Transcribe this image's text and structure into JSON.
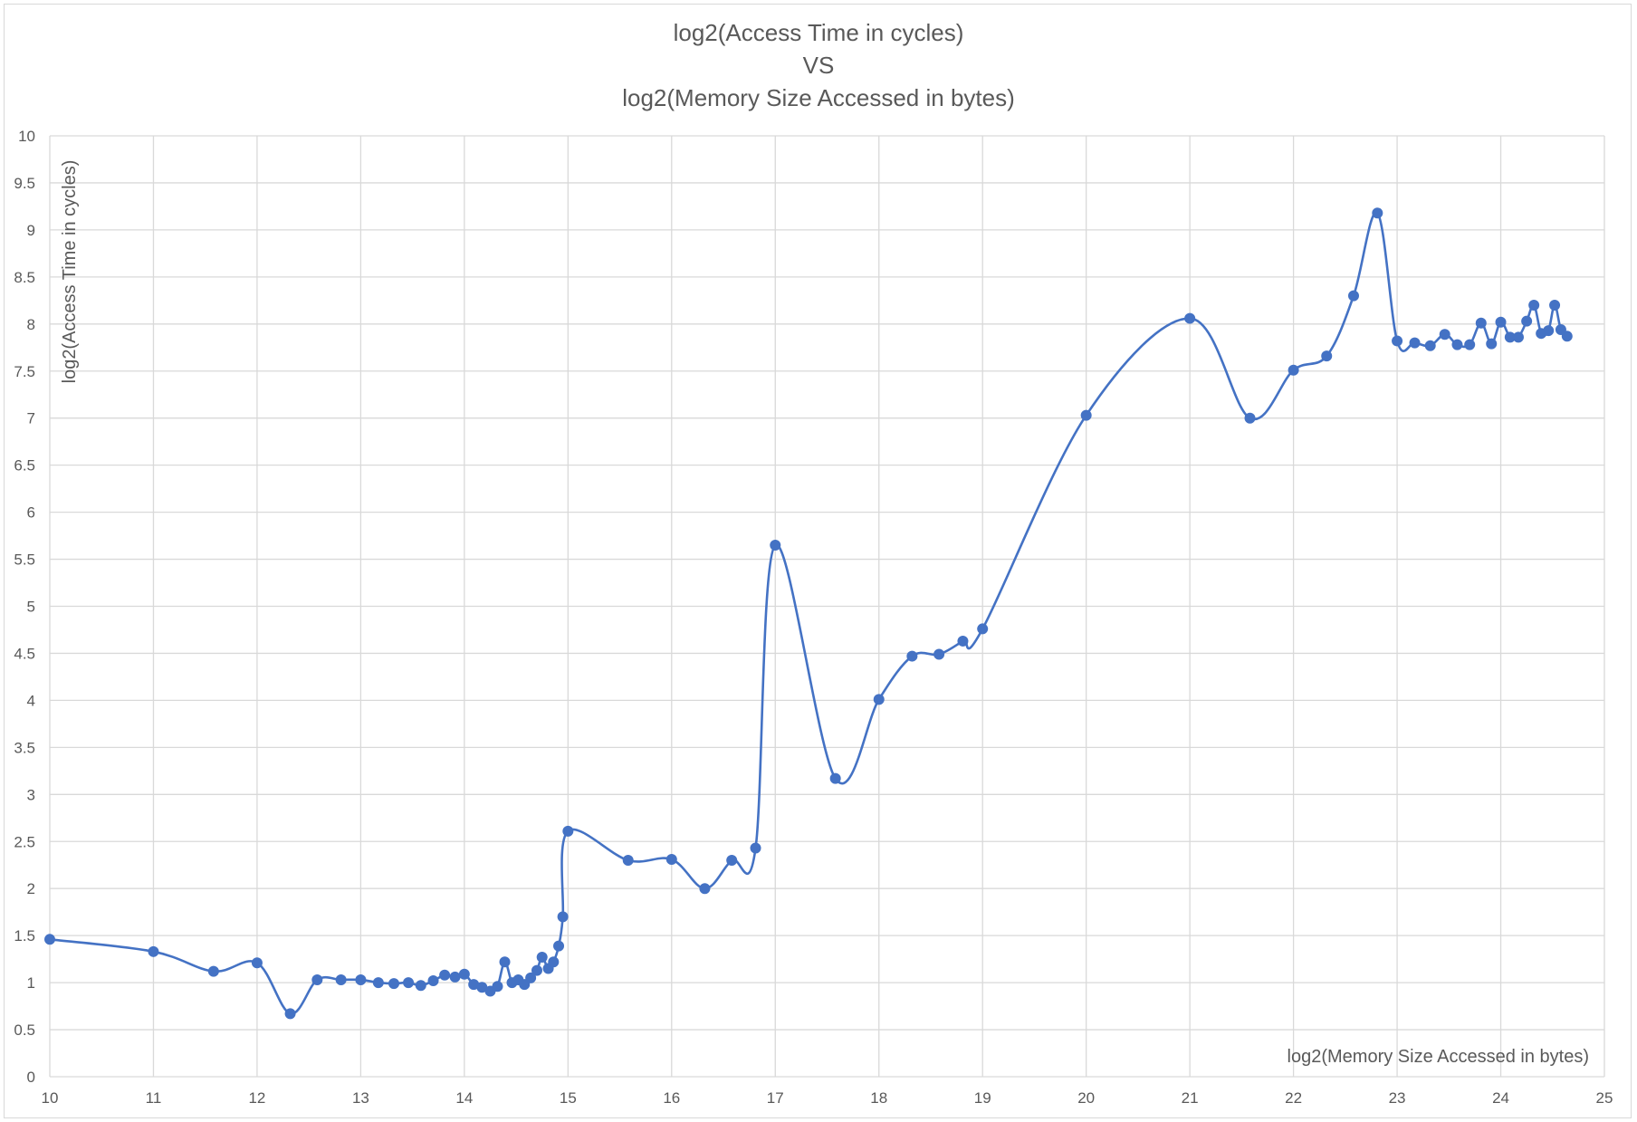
{
  "chart_data": {
    "type": "line",
    "title_lines": [
      "log2(Access Time in cycles)",
      "VS",
      "log2(Memory Size Accessed in bytes)"
    ],
    "xlabel": "log2(Memory Size Accessed in bytes)",
    "ylabel": "log2(Access Time in cycles)",
    "xlim": [
      10,
      25
    ],
    "ylim": [
      0,
      10
    ],
    "x_ticks": [
      "10",
      "11",
      "12",
      "13",
      "14",
      "15",
      "16",
      "17",
      "18",
      "19",
      "20",
      "21",
      "22",
      "23",
      "24",
      "25"
    ],
    "y_ticks": [
      "0",
      "0.5",
      "1",
      "1.5",
      "2",
      "2.5",
      "3",
      "3.5",
      "4",
      "4.5",
      "5",
      "5.5",
      "6",
      "6.5",
      "7",
      "7.5",
      "8",
      "8.5",
      "9",
      "9.5",
      "10"
    ],
    "grid": true,
    "smoothed": true,
    "series_color": "#4472c4",
    "series": [
      {
        "points": [
          [
            10.0,
            1.46
          ],
          [
            11.0,
            1.33
          ],
          [
            11.58,
            1.12
          ],
          [
            12.0,
            1.21
          ],
          [
            12.32,
            0.67
          ],
          [
            12.58,
            1.03
          ],
          [
            12.81,
            1.03
          ],
          [
            13.0,
            1.03
          ],
          [
            13.17,
            1.0
          ],
          [
            13.32,
            0.99
          ],
          [
            13.46,
            1.0
          ],
          [
            13.58,
            0.97
          ],
          [
            13.7,
            1.02
          ],
          [
            13.81,
            1.08
          ],
          [
            13.91,
            1.06
          ],
          [
            14.0,
            1.09
          ],
          [
            14.09,
            0.98
          ],
          [
            14.17,
            0.95
          ],
          [
            14.25,
            0.91
          ],
          [
            14.32,
            0.96
          ],
          [
            14.39,
            1.22
          ],
          [
            14.46,
            1.0
          ],
          [
            14.52,
            1.03
          ],
          [
            14.58,
            0.98
          ],
          [
            14.64,
            1.05
          ],
          [
            14.7,
            1.13
          ],
          [
            14.75,
            1.27
          ],
          [
            14.81,
            1.15
          ],
          [
            14.86,
            1.22
          ],
          [
            14.91,
            1.39
          ],
          [
            14.95,
            1.7
          ],
          [
            15.0,
            2.61
          ],
          [
            15.58,
            2.3
          ],
          [
            16.0,
            2.31
          ],
          [
            16.32,
            2.0
          ],
          [
            16.58,
            2.3
          ],
          [
            16.81,
            2.43
          ],
          [
            17.0,
            5.65
          ],
          [
            17.58,
            3.17
          ],
          [
            18.0,
            4.01
          ],
          [
            18.32,
            4.47
          ],
          [
            18.58,
            4.49
          ],
          [
            18.81,
            4.63
          ],
          [
            19.0,
            4.76
          ],
          [
            20.0,
            7.03
          ],
          [
            21.0,
            8.06
          ],
          [
            21.58,
            7.0
          ],
          [
            22.0,
            7.51
          ],
          [
            22.32,
            7.66
          ],
          [
            22.58,
            8.3
          ],
          [
            22.81,
            9.18
          ],
          [
            23.0,
            7.82
          ],
          [
            23.17,
            7.8
          ],
          [
            23.32,
            7.77
          ],
          [
            23.46,
            7.89
          ],
          [
            23.58,
            7.78
          ],
          [
            23.7,
            7.78
          ],
          [
            23.81,
            8.01
          ],
          [
            23.91,
            7.79
          ],
          [
            24.0,
            8.02
          ],
          [
            24.09,
            7.86
          ],
          [
            24.17,
            7.86
          ],
          [
            24.25,
            8.03
          ],
          [
            24.32,
            8.2
          ],
          [
            24.39,
            7.9
          ],
          [
            24.46,
            7.93
          ],
          [
            24.52,
            8.2
          ],
          [
            24.58,
            7.94
          ],
          [
            24.64,
            7.87
          ]
        ]
      }
    ]
  }
}
